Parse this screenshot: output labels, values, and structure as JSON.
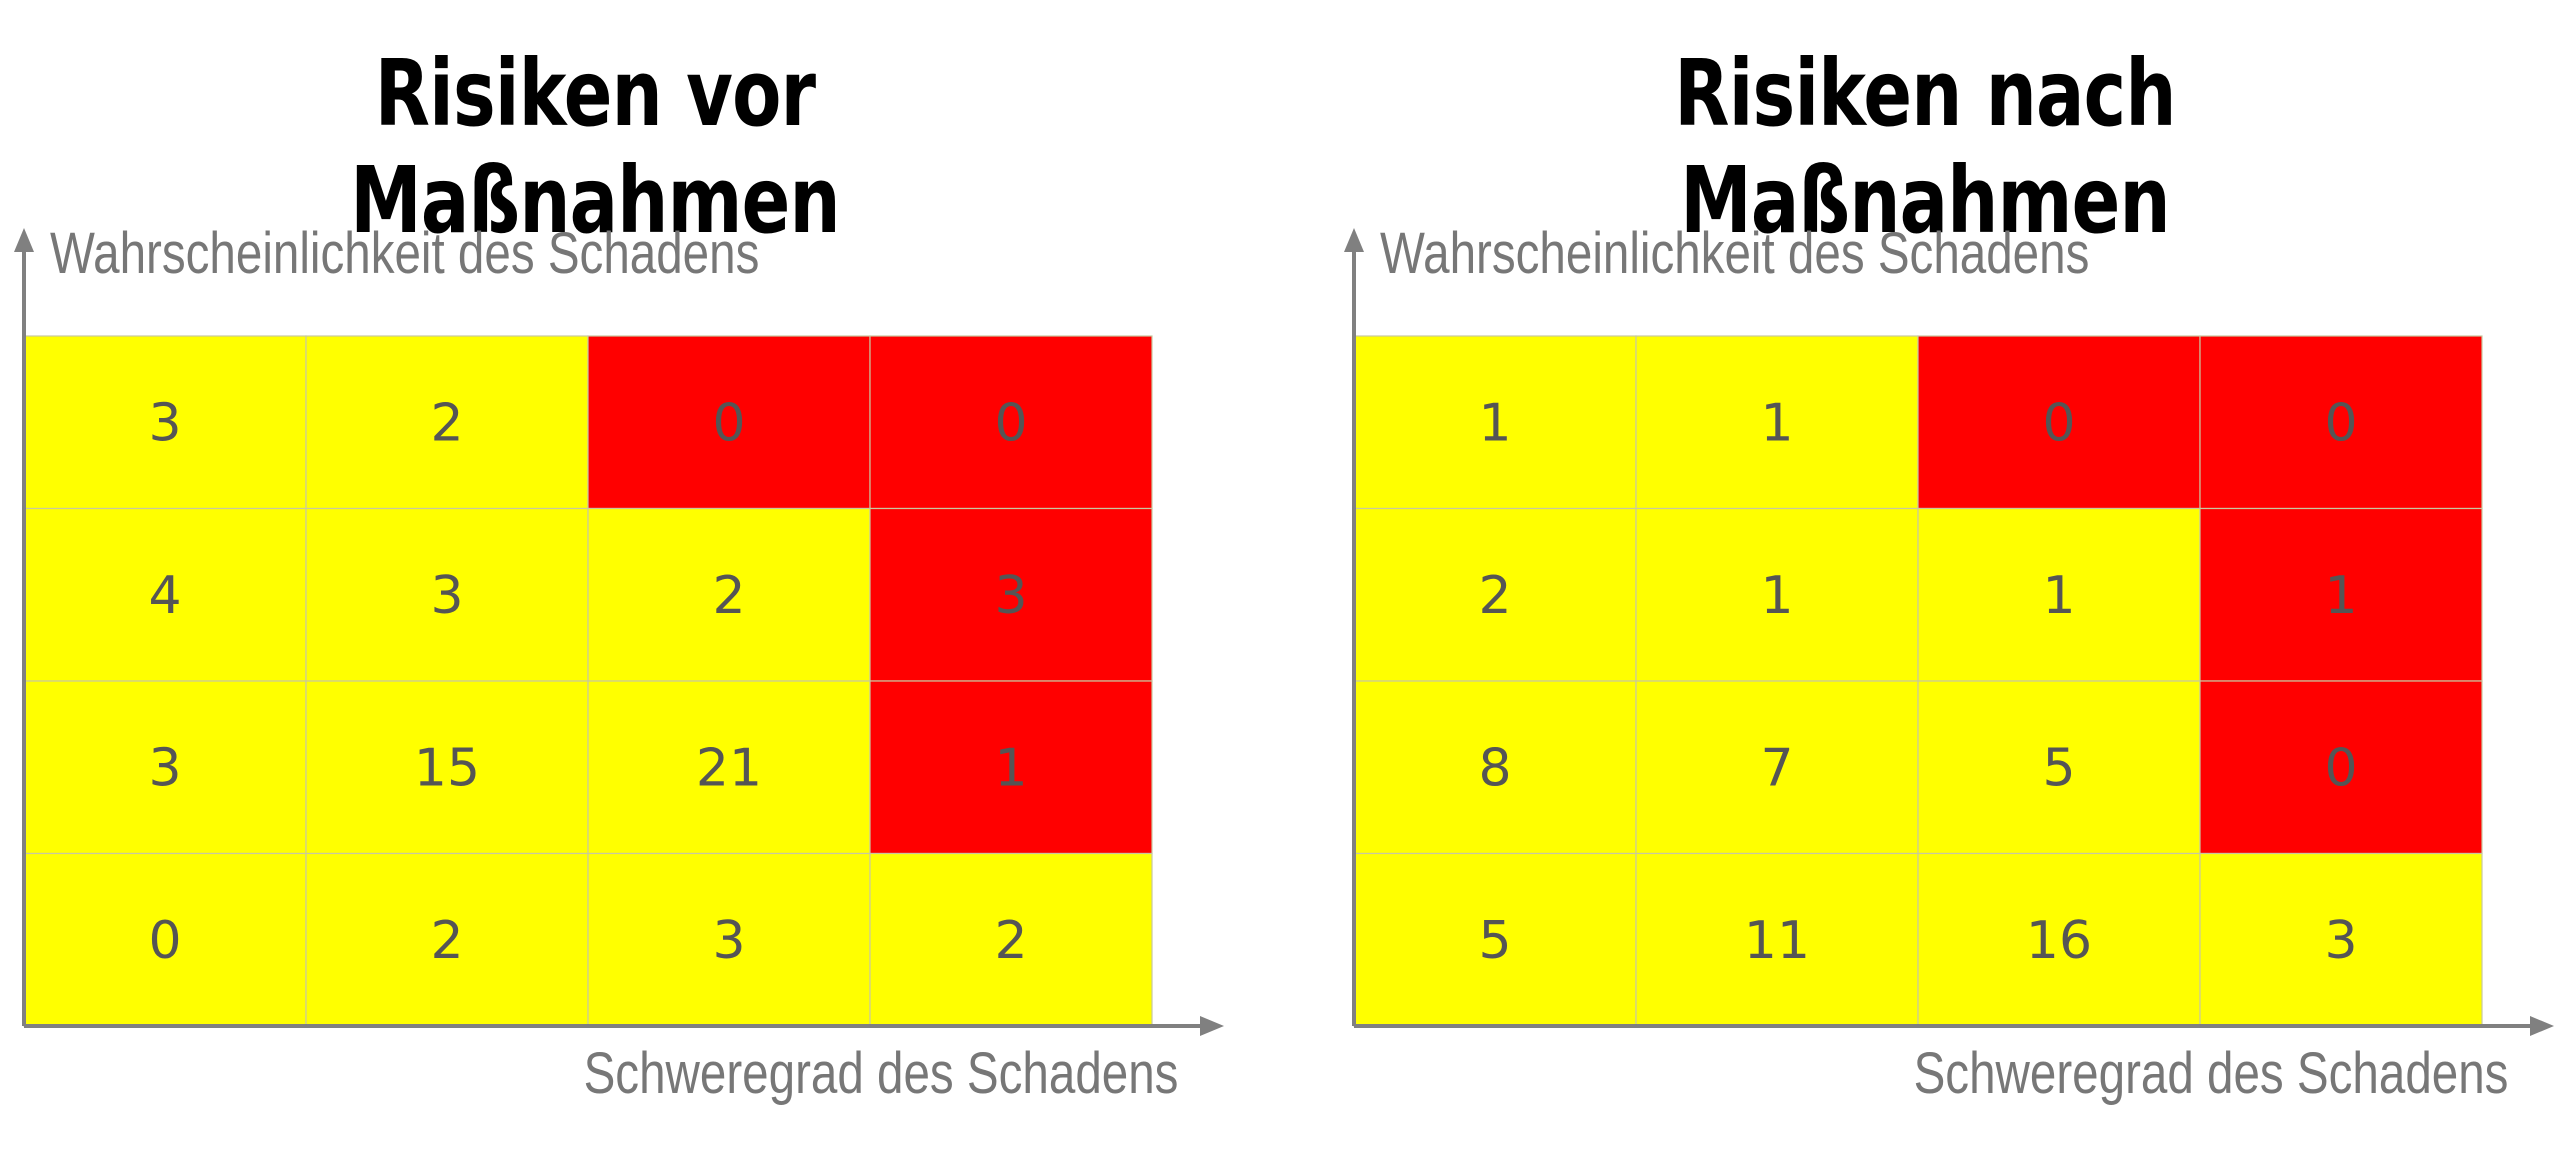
{
  "colors": {
    "low": "#FFFF00",
    "high": "#FF0000",
    "axis": "#808080",
    "text": "#555555",
    "grid": "#c8c8a0"
  },
  "chart_data": [
    {
      "type": "heatmap",
      "title": "Risiken vor Maßnahmen",
      "ylabel": "Wahrscheinlichkeit des Schadens",
      "xlabel": "Schweregrad des Schadens",
      "rows": 4,
      "cols": 4,
      "values": [
        [
          3,
          2,
          0,
          0
        ],
        [
          4,
          3,
          2,
          3
        ],
        [
          3,
          15,
          21,
          1
        ],
        [
          0,
          2,
          3,
          2
        ]
      ],
      "risk": [
        [
          "low",
          "low",
          "high",
          "high"
        ],
        [
          "low",
          "low",
          "low",
          "high"
        ],
        [
          "low",
          "low",
          "low",
          "high"
        ],
        [
          "low",
          "low",
          "low",
          "low"
        ]
      ]
    },
    {
      "type": "heatmap",
      "title": "Risiken nach Maßnahmen",
      "ylabel": "Wahrscheinlichkeit des Schadens",
      "xlabel": "Schweregrad des Schadens",
      "rows": 4,
      "cols": 4,
      "values": [
        [
          1,
          1,
          0,
          0
        ],
        [
          2,
          1,
          1,
          1
        ],
        [
          8,
          7,
          5,
          0
        ],
        [
          5,
          11,
          16,
          3
        ]
      ],
      "risk": [
        [
          "low",
          "low",
          "high",
          "high"
        ],
        [
          "low",
          "low",
          "low",
          "high"
        ],
        [
          "low",
          "low",
          "low",
          "high"
        ],
        [
          "low",
          "low",
          "low",
          "low"
        ]
      ]
    }
  ]
}
